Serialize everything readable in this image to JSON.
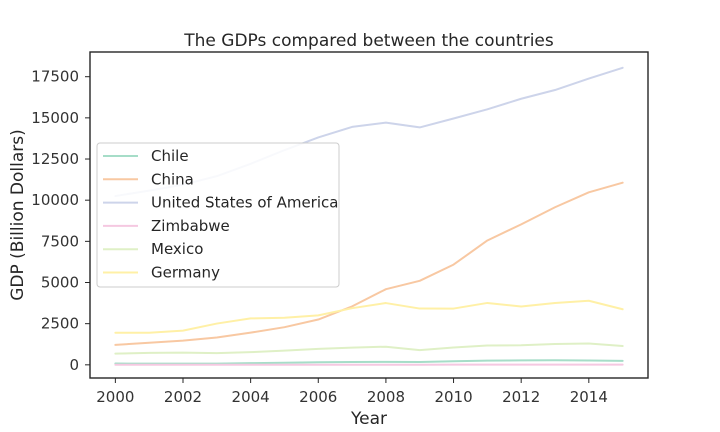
{
  "chart_data": {
    "type": "line",
    "title": "The GDPs compared between the countries",
    "xlabel": "Year",
    "ylabel": "GDP (Billion Dollars)",
    "xlim": [
      1999.25,
      2015.75
    ],
    "ylim": [
      -800,
      19000
    ],
    "xticks": [
      2000,
      2002,
      2004,
      2006,
      2008,
      2010,
      2012,
      2014
    ],
    "yticks": [
      0,
      2500,
      5000,
      7500,
      10000,
      12500,
      15000,
      17500
    ],
    "grid": false,
    "legend_position": "center-left",
    "x": [
      2000,
      2001,
      2002,
      2003,
      2004,
      2005,
      2006,
      2007,
      2008,
      2009,
      2010,
      2011,
      2012,
      2013,
      2014,
      2015
    ],
    "series": [
      {
        "name": "Chile",
        "color": "#a6ddc8",
        "values": [
          78,
          71,
          70,
          76,
          100,
          123,
          155,
          173,
          180,
          172,
          218,
          252,
          267,
          278,
          260,
          243
        ]
      },
      {
        "name": "China",
        "color": "#f8c8a2",
        "values": [
          1211,
          1339,
          1471,
          1660,
          1955,
          2286,
          2752,
          3550,
          4594,
          5102,
          6087,
          7552,
          8532,
          9570,
          10476,
          11062
        ]
      },
      {
        "name": "United States of America",
        "color": "#cdd4ea",
        "values": [
          10250,
          10580,
          10940,
          11460,
          12210,
          13040,
          13810,
          14450,
          14710,
          14420,
          14960,
          15520,
          16160,
          16690,
          17390,
          18040
        ]
      },
      {
        "name": "Zimbabwe",
        "color": "#f5c8e1",
        "values": [
          6.7,
          6.8,
          6.3,
          5.7,
          5.8,
          5.8,
          5.4,
          5.3,
          4.4,
          8.2,
          9.4,
          10.9,
          12.4,
          13.5,
          14.0,
          14.0
        ]
      },
      {
        "name": "Mexico",
        "color": "#dff0c6",
        "values": [
          684,
          725,
          742,
          713,
          770,
          866,
          966,
          1043,
          1101,
          895,
          1051,
          1171,
          1187,
          1262,
          1298,
          1144
        ]
      },
      {
        "name": "Germany",
        "color": "#fff0a6",
        "values": [
          1950,
          1951,
          2079,
          2506,
          2819,
          2862,
          3003,
          3440,
          3752,
          3418,
          3417,
          3758,
          3544,
          3753,
          3890,
          3376
        ]
      }
    ]
  }
}
